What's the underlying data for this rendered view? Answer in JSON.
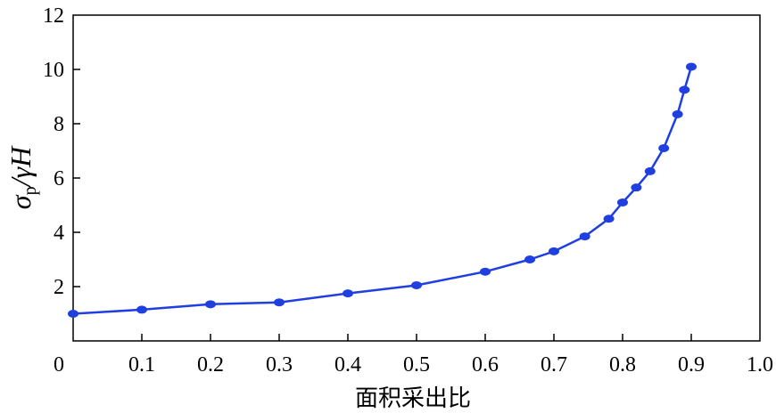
{
  "chart_data": {
    "type": "line",
    "xlabel": "面积采出比",
    "ylabel": "σp/γH",
    "ylabel_parts": {
      "sigma": "σ",
      "sub": "p",
      "rest": "/γH"
    },
    "xlim": [
      0,
      1.0
    ],
    "ylim": [
      0,
      12
    ],
    "x_ticks": [
      0,
      0.1,
      0.2,
      0.3,
      0.4,
      0.5,
      0.6,
      0.7,
      0.8,
      0.9,
      1.0
    ],
    "x_tick_labels": [
      "0",
      "0.1",
      "0.2",
      "0.3",
      "0.4",
      "0.5",
      "0.6",
      "0.7",
      "0.8",
      "0.9",
      "1.0"
    ],
    "y_ticks": [
      2,
      4,
      6,
      8,
      10,
      12
    ],
    "y_tick_labels": [
      "2",
      "4",
      "6",
      "8",
      "10",
      "12"
    ],
    "grid": false,
    "series": [
      {
        "color": "#1f3fe0",
        "x": [
          0.0,
          0.1,
          0.2,
          0.3,
          0.4,
          0.5,
          0.6,
          0.665,
          0.7,
          0.745,
          0.78,
          0.8,
          0.82,
          0.84,
          0.86,
          0.88,
          0.89,
          0.9
        ],
        "y": [
          1.0,
          1.15,
          1.35,
          1.42,
          1.75,
          2.05,
          2.55,
          3.0,
          3.3,
          3.85,
          4.5,
          5.1,
          5.65,
          6.25,
          7.1,
          8.35,
          9.25,
          10.1
        ]
      }
    ]
  }
}
